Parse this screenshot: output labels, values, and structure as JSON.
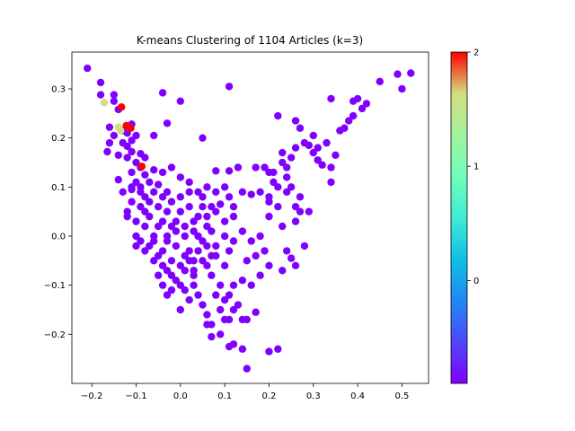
{
  "chart_data": {
    "type": "scatter",
    "title": "K-means Clustering of 1104 Articles (k=3)",
    "xlabel": "",
    "ylabel": "",
    "xlim": [
      -0.245,
      0.56
    ],
    "ylim": [
      -0.3,
      0.375
    ],
    "xticks": [
      -0.2,
      -0.1,
      0.0,
      0.1,
      0.2,
      0.3,
      0.4,
      0.5
    ],
    "yticks": [
      -0.2,
      -0.1,
      0.0,
      0.1,
      0.2,
      0.3
    ],
    "grid": false,
    "colorbar": {
      "colormap": "rainbow",
      "range": [
        -0.9,
        2
      ],
      "ticks": [
        0,
        1,
        2
      ],
      "cluster_colors": {
        "0": "#7f00ff",
        "1": "#d4dd80",
        "2": "#ff0000"
      }
    },
    "series": [
      {
        "cluster": 0,
        "points": [
          [
            -0.21,
            0.342
          ],
          [
            -0.18,
            0.313
          ],
          [
            -0.18,
            0.288
          ],
          [
            -0.15,
            0.288
          ],
          [
            -0.15,
            0.275
          ],
          [
            -0.14,
            0.258
          ],
          [
            -0.16,
            0.222
          ],
          [
            -0.13,
            0.215
          ],
          [
            -0.15,
            0.205
          ],
          [
            -0.13,
            0.19
          ],
          [
            -0.11,
            0.228
          ],
          [
            -0.12,
            0.21
          ],
          [
            -0.11,
            0.195
          ],
          [
            -0.1,
            0.205
          ],
          [
            -0.12,
            0.183
          ],
          [
            -0.11,
            0.172
          ],
          [
            -0.09,
            0.168
          ],
          [
            -0.16,
            0.19
          ],
          [
            -0.165,
            0.172
          ],
          [
            -0.14,
            0.165
          ],
          [
            -0.12,
            0.16
          ],
          [
            -0.1,
            0.15
          ],
          [
            -0.09,
            0.14
          ],
          [
            -0.08,
            0.16
          ],
          [
            -0.06,
            0.205
          ],
          [
            -0.11,
            0.13
          ],
          [
            -0.08,
            0.125
          ],
          [
            -0.1,
            0.11
          ],
          [
            -0.06,
            0.135
          ],
          [
            -0.04,
            0.13
          ],
          [
            -0.14,
            0.115
          ],
          [
            -0.13,
            0.09
          ],
          [
            -0.11,
            0.095
          ],
          [
            -0.09,
            0.1
          ],
          [
            -0.07,
            0.11
          ],
          [
            -0.05,
            0.105
          ],
          [
            -0.03,
            0.09
          ],
          [
            -0.02,
            0.14
          ],
          [
            0.0,
            0.12
          ],
          [
            0.02,
            0.11
          ],
          [
            0.04,
            0.09
          ],
          [
            0.06,
            0.1
          ],
          [
            0.08,
            0.09
          ],
          [
            0.09,
            0.065
          ],
          [
            0.1,
            0.1
          ],
          [
            0.11,
            0.08
          ],
          [
            0.12,
            0.06
          ],
          [
            0.14,
            0.09
          ],
          [
            0.16,
            0.085
          ],
          [
            0.18,
            0.09
          ],
          [
            0.2,
            0.07
          ],
          [
            0.22,
            0.06
          ],
          [
            0.08,
            0.133
          ],
          [
            0.11,
            0.133
          ],
          [
            0.13,
            0.14
          ],
          [
            0.17,
            0.14
          ],
          [
            0.2,
            0.13
          ],
          [
            0.23,
            0.15
          ],
          [
            0.24,
            0.12
          ],
          [
            0.25,
            0.1
          ],
          [
            0.27,
            0.08
          ],
          [
            0.22,
            0.1
          ],
          [
            0.2,
            0.04
          ],
          [
            0.23,
            0.02
          ],
          [
            0.26,
            0.03
          ],
          [
            0.27,
            0.05
          ],
          [
            0.18,
            0.0
          ],
          [
            0.16,
            -0.01
          ],
          [
            0.14,
            0.01
          ],
          [
            0.12,
            0.04
          ],
          [
            0.1,
            0.03
          ],
          [
            0.08,
            0.05
          ],
          [
            0.06,
            0.04
          ],
          [
            0.05,
            0.06
          ],
          [
            0.15,
            -0.05
          ],
          [
            0.17,
            -0.04
          ],
          [
            0.19,
            -0.03
          ],
          [
            0.24,
            -0.03
          ],
          [
            0.26,
            -0.06
          ],
          [
            0.23,
            -0.07
          ],
          [
            0.2,
            -0.06
          ],
          [
            0.18,
            -0.08
          ],
          [
            0.16,
            -0.1
          ],
          [
            0.14,
            -0.09
          ],
          [
            0.12,
            -0.1
          ],
          [
            0.11,
            -0.12
          ],
          [
            0.1,
            -0.13
          ],
          [
            0.12,
            -0.15
          ],
          [
            0.13,
            -0.14
          ],
          [
            0.15,
            -0.17
          ],
          [
            0.17,
            -0.155
          ],
          [
            0.14,
            -0.17
          ],
          [
            0.11,
            -0.17
          ],
          [
            0.09,
            -0.2
          ],
          [
            0.12,
            -0.22
          ],
          [
            0.14,
            -0.23
          ],
          [
            0.2,
            -0.235
          ],
          [
            0.22,
            -0.23
          ],
          [
            0.15,
            -0.27
          ],
          [
            0.11,
            -0.225
          ],
          [
            0.07,
            -0.18
          ],
          [
            0.06,
            -0.16
          ],
          [
            0.05,
            -0.14
          ],
          [
            0.04,
            -0.12
          ],
          [
            0.03,
            -0.1
          ],
          [
            0.08,
            -0.12
          ],
          [
            0.09,
            -0.1
          ],
          [
            0.07,
            -0.08
          ],
          [
            0.06,
            -0.06
          ],
          [
            0.08,
            -0.04
          ],
          [
            0.1,
            -0.06
          ],
          [
            0.11,
            -0.03
          ],
          [
            0.12,
            -0.01
          ],
          [
            0.1,
            0.0
          ],
          [
            0.02,
            -0.13
          ],
          [
            0.0,
            -0.15
          ],
          [
            -0.02,
            -0.11
          ],
          [
            -0.03,
            -0.12
          ],
          [
            -0.04,
            -0.1
          ],
          [
            0.09,
            -0.15
          ],
          [
            0.1,
            -0.17
          ],
          [
            0.06,
            -0.18
          ],
          [
            0.07,
            -0.205
          ],
          [
            0.25,
            -0.045
          ],
          [
            0.28,
            -0.02
          ],
          [
            0.29,
            0.05
          ],
          [
            0.26,
            0.18
          ],
          [
            0.25,
            0.16
          ],
          [
            0.27,
            0.22
          ],
          [
            0.28,
            0.19
          ],
          [
            0.29,
            0.185
          ],
          [
            0.3,
            0.17
          ],
          [
            0.31,
            0.155
          ],
          [
            0.32,
            0.145
          ],
          [
            0.33,
            0.19
          ],
          [
            0.34,
            0.14
          ],
          [
            0.34,
            0.11
          ],
          [
            0.34,
            0.28
          ],
          [
            0.36,
            0.215
          ],
          [
            0.37,
            0.22
          ],
          [
            0.38,
            0.235
          ],
          [
            0.39,
            0.245
          ],
          [
            0.39,
            0.275
          ],
          [
            0.4,
            0.28
          ],
          [
            0.41,
            0.26
          ],
          [
            0.42,
            0.27
          ],
          [
            0.45,
            0.315
          ],
          [
            0.49,
            0.33
          ],
          [
            0.5,
            0.3
          ],
          [
            0.52,
            0.332
          ],
          [
            0.11,
            0.305
          ],
          [
            -0.04,
            0.292
          ],
          [
            0.0,
            0.275
          ],
          [
            -0.03,
            0.23
          ],
          [
            0.05,
            0.2
          ],
          [
            0.22,
            0.245
          ],
          [
            0.26,
            0.235
          ],
          [
            0.3,
            0.205
          ],
          [
            0.21,
            0.11
          ],
          [
            0.23,
            0.17
          ],
          [
            0.24,
            0.14
          ],
          [
            0.2,
            0.08
          ],
          [
            0.19,
            0.14
          ],
          [
            0.21,
            0.13
          ],
          [
            0.24,
            0.09
          ],
          [
            0.26,
            0.06
          ],
          [
            0.04,
            -0.03
          ],
          [
            0.02,
            -0.05
          ],
          [
            0.01,
            -0.07
          ],
          [
            0.03,
            -0.08
          ],
          [
            -0.01,
            -0.09
          ],
          [
            -0.05,
            -0.04
          ],
          [
            -0.07,
            -0.02
          ],
          [
            -0.09,
            -0.01
          ],
          [
            -0.1,
            0.03
          ],
          [
            -0.12,
            0.05
          ],
          [
            -0.11,
            0.07
          ],
          [
            -0.09,
            0.06
          ],
          [
            -0.07,
            0.04
          ],
          [
            -0.05,
            0.02
          ],
          [
            -0.03,
            0.0
          ],
          [
            -0.01,
            -0.02
          ],
          [
            0.01,
            0.0
          ],
          [
            0.03,
            0.01
          ],
          [
            0.05,
            -0.01
          ],
          [
            0.07,
            0.01
          ],
          [
            0.06,
            0.02
          ],
          [
            0.04,
            0.04
          ],
          [
            0.02,
            0.06
          ],
          [
            0.0,
            0.05
          ],
          [
            -0.02,
            0.07
          ],
          [
            -0.04,
            0.08
          ],
          [
            -0.06,
            0.09
          ],
          [
            -0.08,
            0.08
          ],
          [
            -0.08,
            0.02
          ],
          [
            -0.06,
            -0.01
          ],
          [
            -0.04,
            -0.03
          ],
          [
            -0.02,
            -0.05
          ],
          [
            0.0,
            -0.06
          ],
          [
            0.02,
            -0.03
          ],
          [
            0.03,
            -0.05
          ],
          [
            -0.01,
            0.03
          ],
          [
            -0.03,
            0.05
          ],
          [
            -0.05,
            0.06
          ],
          [
            -0.07,
            0.07
          ],
          [
            -0.09,
            0.09
          ],
          [
            -0.1,
            0.0
          ],
          [
            -0.08,
            -0.03
          ],
          [
            -0.06,
            -0.05
          ],
          [
            -0.04,
            -0.06
          ],
          [
            -0.02,
            -0.08
          ],
          [
            0.0,
            -0.1
          ],
          [
            0.01,
            -0.11
          ],
          [
            -0.03,
            -0.07
          ],
          [
            -0.05,
            -0.08
          ],
          [
            0.05,
            0.08
          ],
          [
            0.07,
            0.06
          ],
          [
            0.03,
            0.03
          ],
          [
            0.01,
            0.02
          ],
          [
            -0.01,
            0.01
          ],
          [
            -0.03,
            -0.01
          ],
          [
            -0.11,
            0.1
          ],
          [
            -0.12,
            0.04
          ],
          [
            -0.1,
            -0.02
          ],
          [
            0.0,
            0.08
          ],
          [
            0.02,
            0.09
          ],
          [
            0.04,
            0.0
          ],
          [
            0.06,
            -0.02
          ],
          [
            0.08,
            -0.02
          ],
          [
            0.07,
            -0.04
          ],
          [
            0.05,
            -0.05
          ],
          [
            0.03,
            -0.07
          ],
          [
            0.01,
            -0.04
          ],
          [
            -0.02,
            0.02
          ],
          [
            -0.04,
            0.03
          ],
          [
            -0.06,
            0.0
          ],
          [
            -0.08,
            0.05
          ],
          [
            0.35,
            0.165
          ],
          [
            0.31,
            0.18
          ]
        ]
      },
      {
        "cluster": 1,
        "points": [
          [
            -0.172,
            0.272
          ],
          [
            -0.14,
            0.222
          ],
          [
            -0.135,
            0.215
          ]
        ]
      },
      {
        "cluster": 2,
        "points": [
          [
            -0.133,
            0.263
          ],
          [
            -0.122,
            0.225
          ],
          [
            -0.117,
            0.222
          ],
          [
            -0.112,
            0.22
          ],
          [
            -0.087,
            0.142
          ]
        ]
      }
    ]
  }
}
